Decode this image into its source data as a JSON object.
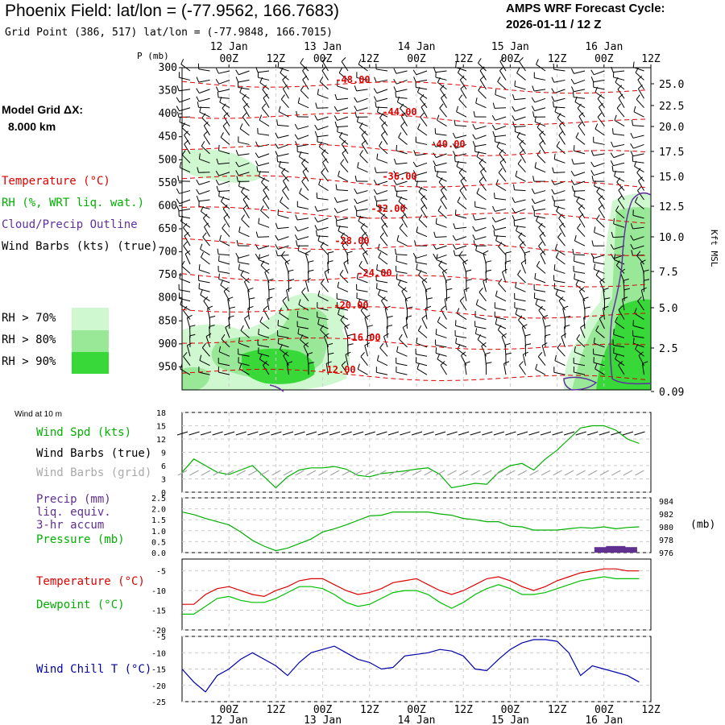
{
  "header": {
    "title": "Phoenix Field:  lat/lon = (-77.9562, 166.7683)",
    "grid_point": "Grid Point (386, 517) lat/lon = (-77.9848, 166.7015)",
    "cycle_label": "AMPS WRF Forecast Cycle:",
    "cycle_value": "2026-01-11 / 12  Z",
    "model_grid_label": "Model Grid ΔX:",
    "model_grid_value": "8.000 km"
  },
  "colors": {
    "temperature": "#dd0000",
    "rh": "#00b000",
    "cloud": "#6030a0",
    "wind": "#000000",
    "wind_grid": "#a0a0a0",
    "pressure": "#00b000",
    "precip": "#603090",
    "dewpoint": "#00c000",
    "windchill": "#0000aa",
    "rh70": "#d0f8d0",
    "rh80": "#98e898",
    "rh90": "#38d838"
  },
  "time_axis": {
    "labels": [
      "00Z",
      "12Z",
      "00Z",
      "12Z",
      "00Z",
      "12Z",
      "00Z",
      "12Z",
      "00Z",
      "12Z"
    ],
    "dates": [
      "12 Jan",
      "13 Jan",
      "14 Jan",
      "15 Jan",
      "16 Jan"
    ]
  },
  "sounding_legend": {
    "temperature": "Temperature (°C)",
    "rh": "RH (%, WRT liq. wat.)",
    "cloud": "Cloud/Precip Outline",
    "wind": "Wind Barbs (kts) (true)",
    "rh70": "RH > 70%",
    "rh80": "RH > 80%",
    "rh90": "RH > 90%"
  },
  "chart_data": [
    {
      "name": "time-height cross section",
      "type": "heatmap",
      "y_label": "P (mb)",
      "y_ticks": [
        "300",
        "350",
        "400",
        "450",
        "500",
        "550",
        "600",
        "650",
        "700",
        "750",
        "800",
        "850",
        "900",
        "950"
      ],
      "right_label": "Kft MSL",
      "right_ticks": [
        "25.0",
        "22.5",
        "20.0",
        "17.5",
        "15.0",
        "12.5",
        "10.0",
        "7.5",
        "5.0",
        "2.5",
        "0.09"
      ],
      "isotherm_labels": [
        "-48.00",
        "-44.00",
        "-40.00",
        "-36.00",
        "-32.00",
        "-28.00",
        "-24.00",
        "-20.00",
        "-16.00",
        "-12.00"
      ]
    },
    {
      "name": "10 m wind",
      "type": "line",
      "panel_title": "Wind at 10 m",
      "labels": [
        "Wind Spd (kts)",
        "Wind Barbs (true)",
        "Wind Barbs (grid)"
      ],
      "y_ticks": [
        "18",
        "15",
        "12",
        "9",
        "6",
        "3",
        "0"
      ],
      "ylim": [
        0,
        18
      ],
      "x": [
        0,
        3,
        6,
        9,
        12,
        15,
        18,
        21,
        24,
        27,
        30,
        33,
        36,
        39,
        42,
        45,
        48,
        51,
        54,
        57,
        60,
        63,
        66,
        69,
        72,
        75,
        78,
        81,
        84,
        87,
        90,
        93,
        96,
        99,
        102,
        105,
        108,
        111,
        114,
        117
      ],
      "values": [
        4.5,
        7.5,
        6,
        4.5,
        4,
        5,
        6,
        3.5,
        1,
        3.5,
        5,
        5.5,
        5.5,
        5.8,
        5.2,
        3.8,
        3.5,
        4.2,
        4.5,
        4.8,
        5.2,
        5.5,
        4,
        1,
        1.5,
        2,
        1.8,
        4.5,
        6,
        6.5,
        5,
        7.5,
        9.5,
        12,
        14.5,
        15,
        15,
        14,
        12,
        11
      ]
    },
    {
      "name": "precip and pressure",
      "type": "line",
      "labels": [
        "Precip (mm)",
        "liq. equiv.",
        "3-hr accum",
        "Pressure (mb)"
      ],
      "y_ticks": [
        "2.5",
        "2.0",
        "1.5",
        "1.0",
        "0.5",
        "0.0"
      ],
      "right_ticks": [
        "984",
        "982",
        "980",
        "978",
        "976"
      ],
      "right_unit": "(mb)",
      "pressure_ylim": [
        976,
        984.5
      ],
      "precip_ylim": [
        0,
        2.5
      ],
      "x": [
        0,
        3,
        6,
        9,
        12,
        15,
        18,
        21,
        24,
        27,
        30,
        33,
        36,
        39,
        42,
        45,
        48,
        51,
        54,
        57,
        60,
        63,
        66,
        69,
        72,
        75,
        78,
        81,
        84,
        87,
        90,
        93,
        96,
        99,
        102,
        105,
        108,
        111,
        114,
        117
      ],
      "pressure": [
        982.3,
        981.9,
        981.3,
        980.8,
        980.3,
        979.2,
        977.9,
        977.0,
        976.3,
        976.7,
        977.4,
        978.1,
        979.2,
        979.7,
        980.3,
        981.0,
        981.7,
        981.8,
        982.3,
        982.3,
        982.3,
        982.3,
        982.0,
        981.8,
        981.3,
        981.1,
        980.8,
        980.8,
        980.1,
        980.0,
        979.5,
        979.5,
        979.5,
        979.7,
        979.9,
        979.8,
        980.0,
        979.7,
        979.9,
        980.0
      ],
      "precip": [
        {
          "x": 108,
          "v": 0.25
        },
        {
          "x": 111,
          "v": 0.3
        },
        {
          "x": 114,
          "v": 0.25
        }
      ]
    },
    {
      "name": "temperature and dewpoint",
      "type": "line",
      "labels": [
        "Temperature (°C)",
        "Dewpoint (°C)"
      ],
      "y_ticks": [
        "-5",
        "-10",
        "-15",
        "-20"
      ],
      "ylim": [
        -20,
        -2
      ],
      "x": [
        0,
        3,
        6,
        9,
        12,
        15,
        18,
        21,
        24,
        27,
        30,
        33,
        36,
        39,
        42,
        45,
        48,
        51,
        54,
        57,
        60,
        63,
        66,
        69,
        72,
        75,
        78,
        81,
        84,
        87,
        90,
        93,
        96,
        99,
        102,
        105,
        108,
        111,
        114,
        117
      ],
      "temperature": [
        -13.5,
        -13.5,
        -11,
        -9.5,
        -9,
        -10,
        -11,
        -11.5,
        -10,
        -9,
        -7.5,
        -7,
        -7,
        -8.5,
        -10,
        -11,
        -10.5,
        -9.5,
        -8,
        -7.5,
        -7,
        -8.5,
        -10,
        -11,
        -10,
        -8.5,
        -7,
        -6.5,
        -7.5,
        -9,
        -10,
        -9,
        -7.5,
        -6.5,
        -5.5,
        -5,
        -4.5,
        -4.5,
        -5,
        -5
      ],
      "dewpoint": [
        -16,
        -16,
        -14,
        -12,
        -11.5,
        -12.5,
        -13,
        -13,
        -12,
        -10.5,
        -9,
        -9,
        -9.5,
        -11,
        -13,
        -14,
        -13.5,
        -12,
        -10.5,
        -10,
        -10,
        -11,
        -13,
        -14.5,
        -13,
        -11,
        -9.5,
        -8.5,
        -9.5,
        -11,
        -11,
        -10.5,
        -9.5,
        -8.5,
        -7.5,
        -7,
        -6.5,
        -7,
        -7,
        -7
      ]
    },
    {
      "name": "wind chill",
      "type": "line",
      "labels": [
        "Wind Chill T (°C)"
      ],
      "y_ticks": [
        "-5",
        "-10",
        "-15",
        "-20",
        "-25"
      ],
      "ylim": [
        -25,
        -5
      ],
      "x": [
        0,
        3,
        6,
        9,
        12,
        15,
        18,
        21,
        24,
        27,
        30,
        33,
        36,
        39,
        42,
        45,
        48,
        51,
        54,
        57,
        60,
        63,
        66,
        69,
        72,
        75,
        78,
        81,
        84,
        87,
        90,
        93,
        96,
        99,
        102,
        105,
        108,
        111,
        114,
        117
      ],
      "values": [
        -15,
        -19,
        -22,
        -17,
        -15,
        -12,
        -10,
        -12,
        -14,
        -17,
        -13,
        -10,
        -9,
        -8,
        -10,
        -12,
        -13,
        -15,
        -14.5,
        -11,
        -10.5,
        -10,
        -9,
        -9.5,
        -11,
        -15,
        -15.5,
        -12,
        -9,
        -7,
        -6,
        -6,
        -6.5,
        -10,
        -17,
        -14,
        -15,
        -16,
        -17,
        -19
      ]
    }
  ]
}
